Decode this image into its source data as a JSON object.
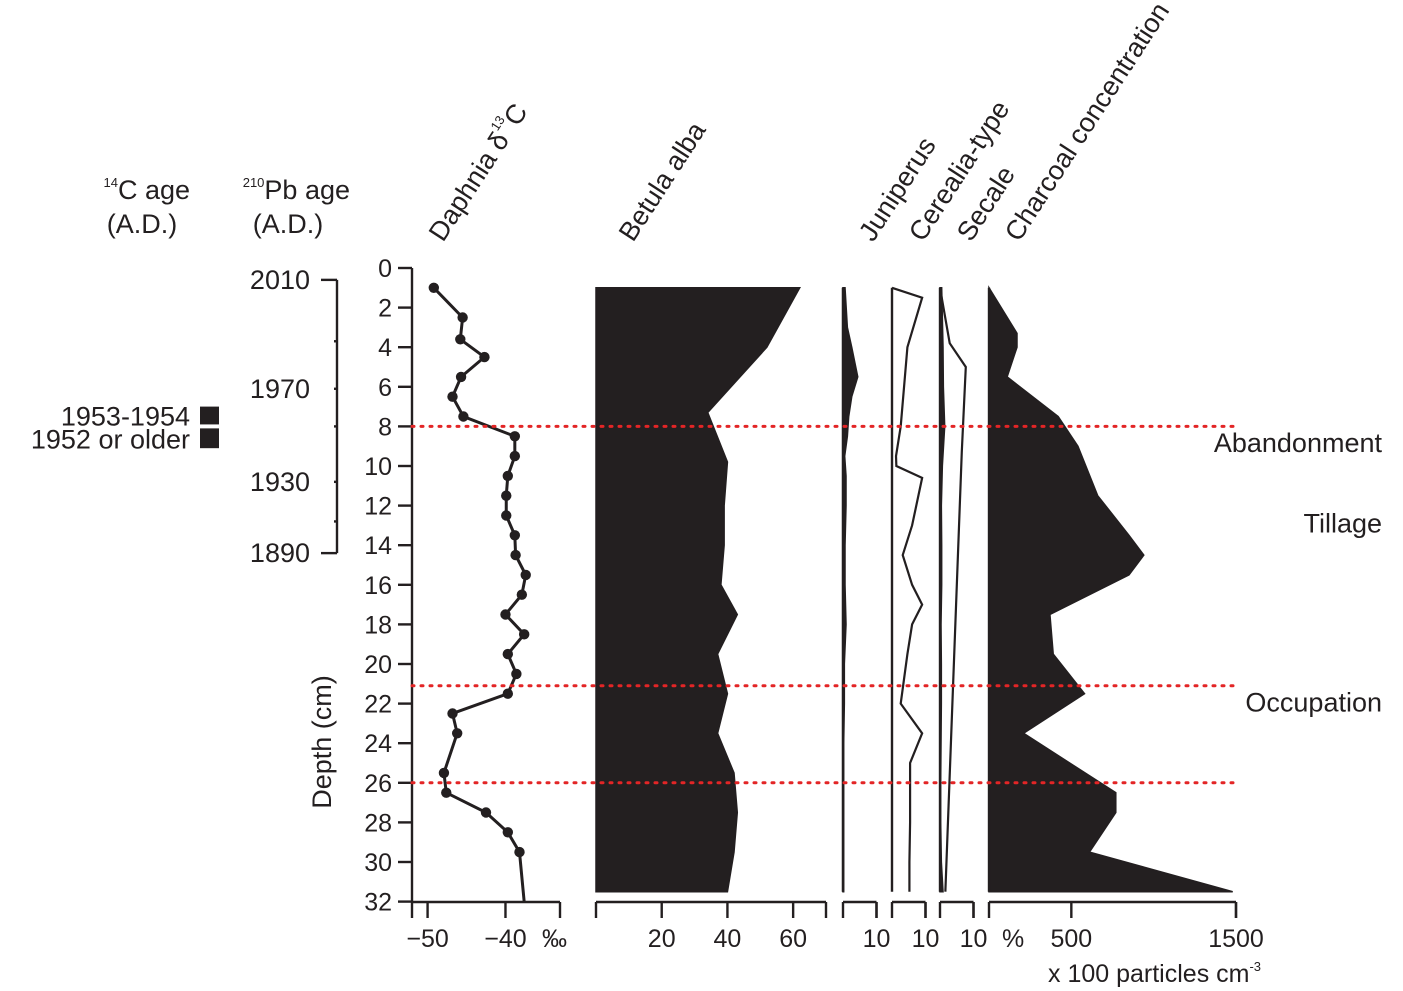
{
  "chart_data": {
    "type": "line",
    "y_axis": {
      "label": "Depth (cm)",
      "ylim": [
        0,
        32
      ],
      "ticks": [
        0,
        2,
        4,
        6,
        8,
        10,
        12,
        14,
        16,
        18,
        20,
        22,
        24,
        26,
        28,
        30,
        32
      ],
      "tick_labels": [
        "0",
        "2",
        "4",
        "6",
        "8",
        "10",
        "12",
        "14",
        "16",
        "18",
        "20",
        "22",
        "24",
        "26",
        "28",
        "30",
        "32"
      ]
    },
    "age_scales": {
      "c14": {
        "label_sup": "14",
        "label_main": "C age",
        "label_line2": "(A.D.)",
        "samples": [
          {
            "label": "1953-1954",
            "depth_top": 7.0,
            "depth_bottom": 7.9
          },
          {
            "label": "1952 or older",
            "depth_top": 8.1,
            "depth_bottom": 9.1
          }
        ]
      },
      "pb210": {
        "label_sup": "210",
        "label_main": "Pb age",
        "label_line2": "(A.D.)",
        "ticks": [
          {
            "depth": 0.6,
            "label": "2010"
          },
          {
            "depth": 3.7,
            "label": ""
          },
          {
            "depth": 6.1,
            "label": "1970"
          },
          {
            "depth": 8.0,
            "label": ""
          },
          {
            "depth": 10.8,
            "label": "1930"
          },
          {
            "depth": 12.8,
            "label": ""
          },
          {
            "depth": 14.4,
            "label": "1890"
          }
        ]
      }
    },
    "panels": [
      {
        "id": "daphnia",
        "type": "line",
        "title_main": "Daphnia δ",
        "title_sup": "13",
        "title_end": "C",
        "xlim": [
          -52,
          -33
        ],
        "ticks": [
          -50,
          -40
        ],
        "tick_labels": [
          "−50",
          "−40"
        ],
        "unit": "‰",
        "depth": [
          1,
          2.5,
          3.6,
          4.5,
          5.5,
          6.5,
          7.5,
          8.5,
          9.5,
          10.5,
          11.5,
          12.5,
          13.5,
          14.5,
          15.5,
          16.5,
          17.5,
          18.5,
          19.5,
          20.5,
          21.5,
          22.5,
          23.5,
          25.5,
          26.5,
          27.5,
          28.5,
          29.5,
          32
        ],
        "values": [
          -49.2,
          -45.5,
          -45.8,
          -42.7,
          -45.7,
          -46.8,
          -45.4,
          -38.8,
          -38.8,
          -39.7,
          -39.9,
          -39.9,
          -38.8,
          -38.7,
          -37.4,
          -37.9,
          -40.0,
          -37.6,
          -39.7,
          -38.6,
          -39.7,
          -46.8,
          -46.2,
          -47.9,
          -47.6,
          -42.5,
          -39.7,
          -38.2,
          -37.6
        ]
      },
      {
        "id": "betula",
        "type": "area",
        "title": "Betula alba",
        "xlim": [
          0,
          70
        ],
        "ticks": [
          20,
          40,
          60
        ],
        "tick_labels": [
          "20",
          "40",
          "60"
        ],
        "depth": [
          1,
          4,
          7.3,
          9.8,
          12,
          14,
          16,
          17.5,
          19.5,
          21.5,
          23.5,
          25.5,
          27.5,
          29.5,
          31.5
        ],
        "values": [
          62,
          52,
          34,
          40,
          39,
          39,
          38,
          43,
          37,
          40,
          37,
          42,
          43,
          42,
          40
        ]
      },
      {
        "id": "juniperus",
        "type": "area",
        "title": "Juniperus",
        "xlim": [
          0,
          10
        ],
        "ticks": [
          10
        ],
        "tick_labels": [
          "10"
        ],
        "depth": [
          1,
          3,
          4,
          5.5,
          6.5,
          7.5,
          8.5,
          9.5,
          10.5,
          12,
          14,
          16,
          18,
          20,
          22,
          24,
          26,
          28,
          30,
          31.5
        ],
        "values": [
          0.6,
          1.3,
          2.6,
          4.4,
          2.6,
          1.7,
          1.3,
          0.5,
          0.9,
          0.9,
          0.6,
          0.6,
          0.9,
          0.4,
          0.4,
          0.2,
          0.2,
          0.2,
          0.2,
          0.2
        ]
      },
      {
        "id": "cerealia",
        "type": "line",
        "title": "Cerealia-type",
        "xlim": [
          0,
          10
        ],
        "ticks": [
          10
        ],
        "tick_labels": [
          "10"
        ],
        "depth": [
          1,
          1.5,
          4,
          8,
          9.5,
          10,
          10.6,
          13,
          14.5,
          16,
          17,
          18,
          19.5,
          22,
          23.5,
          25,
          28,
          30,
          31.5
        ],
        "values": [
          0,
          9.0,
          4.6,
          2.6,
          1.2,
          1.3,
          9.0,
          6.0,
          3.2,
          6.0,
          9.0,
          6.0,
          4.6,
          2.6,
          9.0,
          5.4,
          5.4,
          5.2,
          5.2
        ]
      },
      {
        "id": "secale",
        "type": "area",
        "title": "Secale",
        "xlim": [
          0,
          10
        ],
        "ticks": [
          10
        ],
        "tick_labels": [
          "10"
        ],
        "depth": [
          1,
          4,
          6,
          8,
          10,
          12,
          14,
          16,
          18,
          20,
          22,
          24,
          26,
          28,
          30,
          31.5
        ],
        "values": [
          0.5,
          0.9,
          1.0,
          1.4,
          0.7,
          0.4,
          0.5,
          0.5,
          0.3,
          0.4,
          0.4,
          0.3,
          0.2,
          0.2,
          0.4,
          0.9
        ]
      },
      {
        "id": "charcoal",
        "type": "area",
        "title": "Charcoal concentration",
        "xlim": [
          0,
          1500
        ],
        "ticks": [
          500,
          1500
        ],
        "tick_labels": [
          "500",
          "1500"
        ],
        "unit_label_main": "x 100 particles cm",
        "unit_label_sup": "-3",
        "depth": [
          1,
          3.3,
          4,
          5.5,
          7.5,
          9,
          11.5,
          13.5,
          14.5,
          15.5,
          17.5,
          19.5,
          21.5,
          23.5,
          26.5,
          27.5,
          29.5,
          31.5
        ],
        "values": [
          0,
          170,
          170,
          110,
          420,
          540,
          660,
          850,
          940,
          850,
          370,
          390,
          580,
          210,
          770,
          770,
          610,
          1480
        ]
      }
    ],
    "secale_outline": {
      "depth": [
        1,
        3.8,
        5,
        9.3,
        31.5
      ],
      "values": [
        0,
        2.9,
        7.7,
        6.5,
        1.6
      ]
    },
    "percent_label": "%",
    "zone_lines": [
      {
        "depth": 8.0,
        "label": "Abandonment",
        "label_depth": 8.85
      },
      {
        "depth": 21.1,
        "label": "Occupation",
        "label_depth": 21.95
      },
      {
        "depth": 26.0,
        "label": "",
        "label_depth": 0
      }
    ],
    "zone_labels_extra": [
      {
        "label": "Tillage",
        "label_depth": 12.9
      }
    ],
    "colors": {
      "ink": "#231f20",
      "fill": "#231f20",
      "zone_line": "#e32526"
    }
  }
}
